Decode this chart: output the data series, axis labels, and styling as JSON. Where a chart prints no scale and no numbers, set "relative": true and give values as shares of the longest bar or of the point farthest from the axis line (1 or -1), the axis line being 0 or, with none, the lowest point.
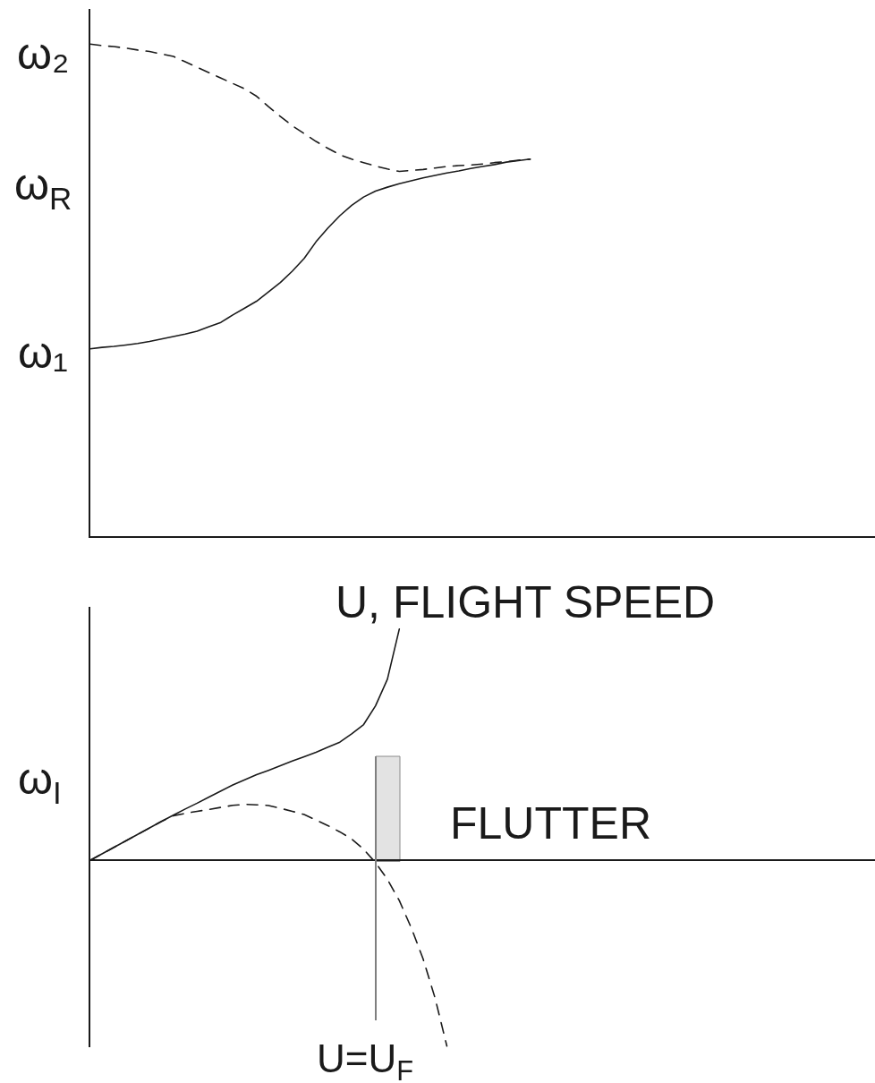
{
  "chart_data": [
    {
      "type": "line",
      "relative": true,
      "tick_labels": false,
      "ylabel": "ω$_{R}$",
      "xlabel": "U, FLIGHT SPEED",
      "annotations": [
        "ω₂",
        "ω₁"
      ],
      "categories": [
        null,
        null,
        null,
        null,
        null,
        null,
        null,
        null,
        null,
        null,
        null,
        null,
        null,
        null,
        null,
        null,
        null,
        null,
        null,
        null,
        null,
        null,
        null,
        null,
        null,
        null,
        null,
        null,
        null,
        null,
        null,
        null,
        null,
        null,
        null,
        null,
        null,
        null,
        null,
        null,
        null,
        null,
        null,
        null,
        null,
        null,
        null,
        null,
        null,
        null,
        null,
        null,
        null,
        null,
        null,
        null,
        null,
        null,
        null,
        null,
        null,
        null,
        null,
        null,
        null,
        null,
        null
      ],
      "series": [
        {
          "color": "#1a1a1a",
          "line_style": "dashed",
          "values": [
            1,
            0.997,
            0.995,
            0.992,
            0.988,
            0.985,
            0.98,
            0.975,
            0.964,
            0.953,
            0.942,
            0.931,
            0.92,
            0.909,
            0.894,
            0.873,
            0.853,
            0.834,
            0.818,
            0.802,
            0.788,
            0.775,
            0.766,
            0.759,
            0.752,
            0.746,
            0.741,
            0.743,
            0.745,
            0.748,
            0.751,
            0.753,
            0.754,
            0.756,
            0.759,
            0.761,
            0.764,
            0.766,
            null,
            null,
            null,
            null,
            null,
            null,
            null,
            null,
            null,
            null,
            null,
            null,
            null,
            null,
            null,
            null,
            null,
            null,
            null,
            null,
            null,
            null,
            null,
            null,
            null,
            null,
            null,
            null,
            null
          ]
        },
        {
          "color": "#1a1a1a",
          "line_style": "solid",
          "values": [
            0.38,
            0.383,
            0.385,
            0.388,
            0.391,
            0.395,
            0.4,
            0.405,
            0.41,
            0.416,
            0.425,
            0.434,
            0.449,
            0.463,
            0.477,
            0.496,
            0.515,
            0.538,
            0.564,
            0.598,
            0.626,
            0.651,
            0.672,
            0.689,
            0.701,
            0.709,
            0.716,
            0.722,
            0.728,
            0.733,
            0.738,
            0.742,
            0.747,
            0.751,
            0.755,
            0.76,
            0.763,
            0.766,
            null,
            null,
            null,
            null,
            null,
            null,
            null,
            null,
            null,
            null,
            null,
            null,
            null,
            null,
            null,
            null,
            null,
            null,
            null,
            null,
            null,
            null,
            null,
            null,
            null,
            null,
            null,
            null,
            null
          ]
        }
      ]
    },
    {
      "type": "line",
      "relative": true,
      "tick_labels": false,
      "ylabel": "ω$_{I}$",
      "annotations": [
        "FLUTTER",
        "U=U$_{F}$"
      ],
      "categories": [
        null,
        null,
        null,
        null,
        null,
        null,
        null,
        null,
        null,
        null,
        null,
        null,
        null,
        null,
        null,
        null,
        null,
        null,
        null,
        null,
        null,
        null,
        null,
        null,
        null,
        null,
        null,
        null,
        null,
        null,
        null,
        null,
        null,
        null,
        null,
        null,
        null,
        null,
        null,
        null,
        null,
        null,
        null,
        null,
        null,
        null,
        null,
        null,
        null,
        null,
        null,
        null,
        null,
        null,
        null,
        null,
        null,
        null,
        null,
        null,
        null,
        null,
        null,
        null,
        null,
        null,
        null
      ],
      "series": [
        {
          "color": "#1a1a1a",
          "line_style": "solid",
          "values": [
            0,
            0.028,
            0.056,
            0.084,
            0.112,
            0.14,
            0.168,
            0.195,
            0.222,
            0.247,
            0.274,
            0.3,
            0.326,
            0.348,
            0.37,
            0.389,
            0.409,
            0.429,
            0.448,
            0.467,
            0.489,
            0.511,
            0.547,
            0.587,
            0.668,
            0.783,
            1,
            null,
            null,
            null,
            null,
            null,
            null,
            null,
            null,
            null,
            null,
            null,
            null,
            null,
            null,
            null,
            null,
            null,
            null,
            null,
            null,
            null,
            null,
            null,
            null,
            null,
            null,
            null,
            null,
            null,
            null,
            null,
            null,
            null,
            null,
            null,
            null,
            null,
            null,
            null,
            null
          ]
        },
        {
          "color": "#1a1a1a",
          "line_style": "dashed",
          "values": [
            0,
            0.028,
            0.056,
            0.084,
            0.112,
            0.14,
            0.168,
            0.193,
            0.203,
            0.212,
            0.22,
            0.229,
            0.238,
            0.242,
            0.24,
            0.237,
            0.225,
            0.212,
            0.198,
            0.174,
            0.15,
            0.123,
            0.092,
            0.048,
            -0.01,
            -0.082,
            -0.174,
            -0.291,
            -0.426,
            -0.594,
            -0.803,
            null,
            null,
            null,
            null,
            null,
            null,
            null,
            null,
            null,
            null,
            null,
            null,
            null,
            null,
            null,
            null,
            null,
            null,
            null,
            null,
            null,
            null,
            null,
            null,
            null,
            null,
            null,
            null,
            null,
            null,
            null,
            null,
            null,
            null,
            null,
            null
          ]
        }
      ]
    }
  ]
}
